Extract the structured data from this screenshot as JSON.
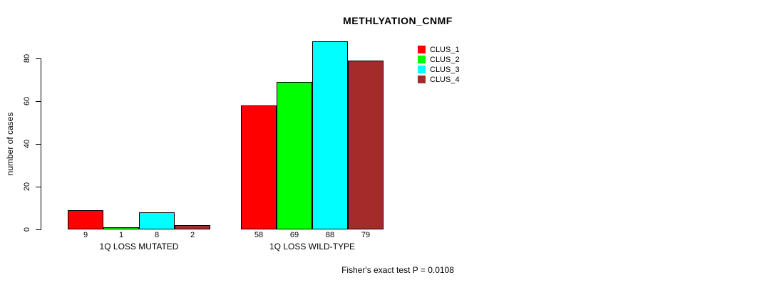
{
  "chart_data": {
    "type": "bar",
    "title": "METHLYATION_CNMF",
    "ylabel": "number of cases",
    "xlabel": "",
    "yticks": [
      0,
      20,
      40,
      60,
      80
    ],
    "ylim": [
      0,
      88
    ],
    "grid": false,
    "legend_position": "right-top",
    "bar_value_labels": true,
    "categories": [
      "1Q LOSS MUTATED",
      "1Q LOSS WILD-TYPE"
    ],
    "series": [
      {
        "name": "CLUS_1",
        "color": "#FF0000",
        "values": [
          9,
          58
        ]
      },
      {
        "name": "CLUS_2",
        "color": "#00FF00",
        "values": [
          1,
          69
        ]
      },
      {
        "name": "CLUS_3",
        "color": "#00FFFF",
        "values": [
          8,
          88
        ]
      },
      {
        "name": "CLUS_4",
        "color": "#A52A2A",
        "values": [
          2,
          79
        ]
      }
    ],
    "annotation": "Fisher's exact test P = 0.0108"
  },
  "colors": {
    "axis": "#000000",
    "background": "#FFFFFF",
    "bar_border": "#000000"
  }
}
